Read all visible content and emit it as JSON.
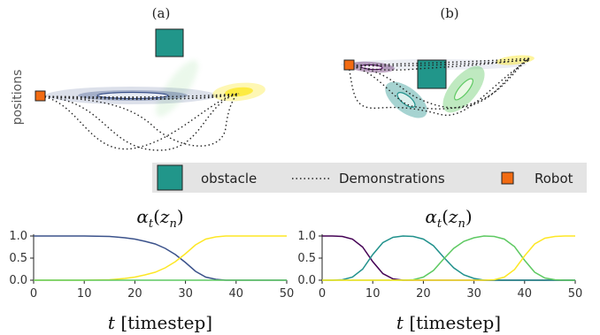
{
  "panels": {
    "a_label": "(a)",
    "b_label": "(b)",
    "y_axis_label": "positions"
  },
  "legend": {
    "obstacle_label": "obstacle",
    "demonstrations_label": "Demonstrations",
    "robot_label": "Robot"
  },
  "colors": {
    "obstacle": "#21968a",
    "robot": "#f26b12",
    "legend_bg": "#e4e4e4",
    "viridis_purple": "#440154",
    "viridis_blue": "#3b528b",
    "viridis_teal": "#21918c",
    "viridis_green": "#5ec962",
    "viridis_yellow": "#fde725"
  },
  "chart_data": [
    {
      "type": "line",
      "panel": "left",
      "title": "α_t(z_n)",
      "title_math": {
        "base": "α",
        "sub": "t",
        "open": "(",
        "var": "z",
        "var_sub": "n",
        "close": ")"
      },
      "xlabel": {
        "var": "t",
        "unit": "[timestep]"
      },
      "ylabel": "",
      "xlim": [
        0,
        50
      ],
      "ylim": [
        0.0,
        1.0
      ],
      "xticks": [
        "0",
        "10",
        "20",
        "30",
        "40",
        "50"
      ],
      "yticks": [
        "0.0",
        "0.5",
        "1.0"
      ],
      "grid": false,
      "x": [
        0,
        5,
        10,
        15,
        18,
        20,
        22,
        24,
        26,
        28,
        30,
        32,
        34,
        36,
        38,
        40,
        45,
        50
      ],
      "series": [
        {
          "color": "#3b528b",
          "values": [
            1.0,
            1.0,
            1.0,
            0.99,
            0.96,
            0.93,
            0.88,
            0.82,
            0.72,
            0.58,
            0.4,
            0.2,
            0.07,
            0.02,
            0.0,
            0.0,
            0.0,
            0.0
          ]
        },
        {
          "color": "#fde725",
          "values": [
            0.0,
            0.0,
            0.0,
            0.01,
            0.04,
            0.07,
            0.12,
            0.18,
            0.28,
            0.42,
            0.6,
            0.8,
            0.93,
            0.98,
            1.0,
            1.0,
            1.0,
            1.0
          ]
        },
        {
          "color": "#5ec962",
          "values": [
            0.0,
            0.0,
            0.0,
            0.0,
            0.0,
            0.0,
            0.0,
            0.0,
            0.0,
            0.0,
            0.0,
            0.0,
            0.0,
            0.0,
            0.0,
            0.0,
            0.0,
            0.0
          ]
        }
      ]
    },
    {
      "type": "line",
      "panel": "right",
      "title": "α_t(z_n)",
      "title_math": {
        "base": "α",
        "sub": "t",
        "open": "(",
        "var": "z",
        "var_sub": "n",
        "close": ")"
      },
      "xlabel": {
        "var": "t",
        "unit": "[timestep]"
      },
      "ylabel": "",
      "xlim": [
        0,
        50
      ],
      "ylim": [
        0.0,
        1.0
      ],
      "xticks": [
        "0",
        "10",
        "20",
        "30",
        "40",
        "50"
      ],
      "yticks": [
        "0.0",
        "0.5",
        "1.0"
      ],
      "grid": false,
      "x": [
        0,
        2,
        4,
        6,
        8,
        10,
        12,
        14,
        16,
        18,
        20,
        22,
        24,
        26,
        28,
        30,
        32,
        34,
        36,
        38,
        40,
        42,
        44,
        46,
        48,
        50
      ],
      "series": [
        {
          "color": "#440154",
          "values": [
            1.0,
            1.0,
            0.99,
            0.93,
            0.75,
            0.42,
            0.15,
            0.03,
            0.0,
            0.0,
            0.0,
            0.0,
            0.0,
            0.0,
            0.0,
            0.0,
            0.0,
            0.0,
            0.0,
            0.0,
            0.0,
            0.0,
            0.0,
            0.0,
            0.0,
            0.0
          ]
        },
        {
          "color": "#21918c",
          "values": [
            0.0,
            0.0,
            0.01,
            0.07,
            0.25,
            0.58,
            0.85,
            0.97,
            1.0,
            0.99,
            0.93,
            0.78,
            0.52,
            0.28,
            0.12,
            0.04,
            0.0,
            0.0,
            0.0,
            0.0,
            0.0,
            0.0,
            0.0,
            0.0,
            0.0,
            0.0
          ]
        },
        {
          "color": "#5ec962",
          "values": [
            0.0,
            0.0,
            0.0,
            0.0,
            0.0,
            0.0,
            0.0,
            0.0,
            0.0,
            0.01,
            0.07,
            0.22,
            0.48,
            0.72,
            0.88,
            0.96,
            1.0,
            0.99,
            0.93,
            0.76,
            0.45,
            0.18,
            0.05,
            0.01,
            0.0,
            0.0
          ]
        },
        {
          "color": "#fde725",
          "values": [
            0.0,
            0.0,
            0.0,
            0.0,
            0.0,
            0.0,
            0.0,
            0.0,
            0.0,
            0.0,
            0.0,
            0.0,
            0.0,
            0.0,
            0.0,
            0.0,
            0.0,
            0.01,
            0.07,
            0.24,
            0.55,
            0.82,
            0.95,
            0.99,
            1.0,
            1.0
          ]
        }
      ]
    }
  ]
}
